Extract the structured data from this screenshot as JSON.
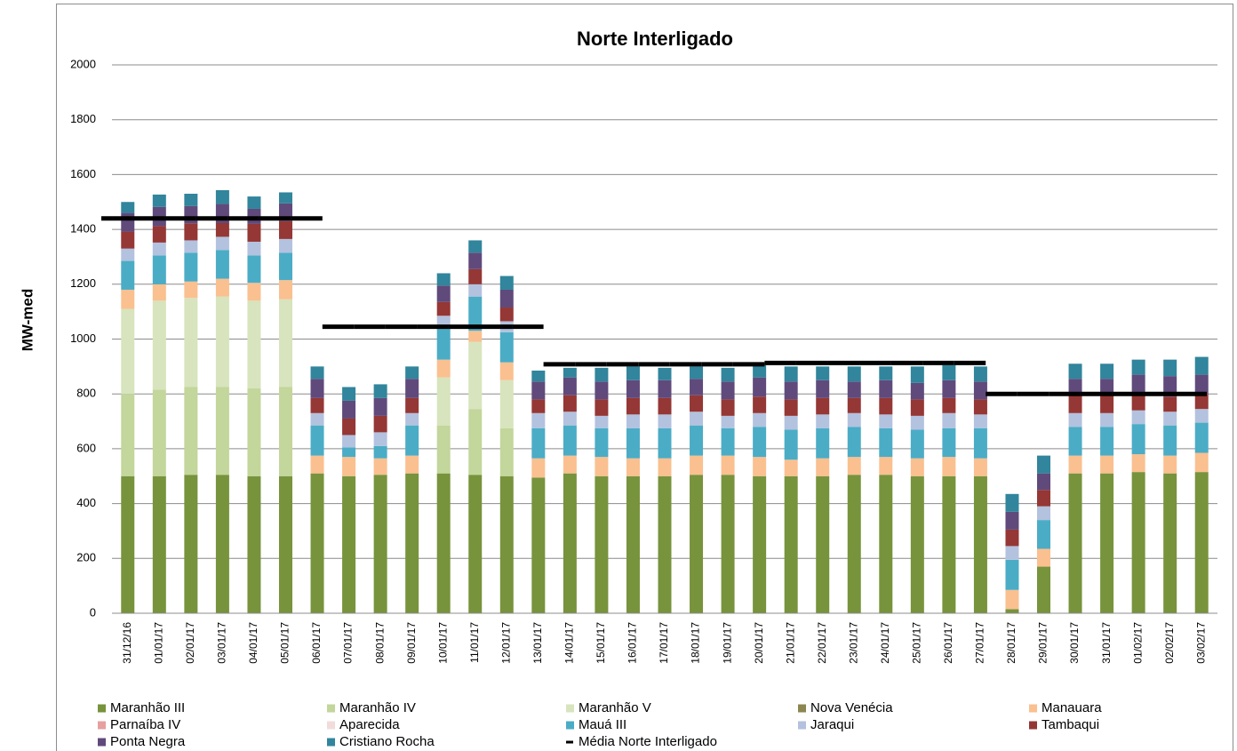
{
  "chart_data": {
    "type": "bar",
    "stacked": true,
    "title": "Norte Interligado",
    "y_label": "MW-med",
    "categories": [
      "31/12/16",
      "01/01/17",
      "02/01/17",
      "03/01/17",
      "04/01/17",
      "05/01/17",
      "06/01/17",
      "07/01/17",
      "08/01/17",
      "09/01/17",
      "10/01/17",
      "11/01/17",
      "12/01/17",
      "13/01/17",
      "14/01/17",
      "15/01/17",
      "16/01/17",
      "17/01/17",
      "18/01/17",
      "19/01/17",
      "20/01/17",
      "21/01/17",
      "22/01/17",
      "23/01/17",
      "24/01/17",
      "25/01/17",
      "26/01/17",
      "27/01/17",
      "28/01/17",
      "29/01/17",
      "30/01/17",
      "31/01/17",
      "01/02/17",
      "02/02/17",
      "03/02/17"
    ],
    "ylim": [
      0,
      2000
    ],
    "yticks": [
      0,
      200,
      400,
      600,
      800,
      1000,
      1200,
      1400,
      1600,
      1800,
      2000
    ],
    "grid": true,
    "legend": "bottom",
    "series": [
      {
        "name": "Maranhão III",
        "color": "#77933c",
        "values": [
          500,
          500,
          505,
          505,
          500,
          500,
          510,
          500,
          505,
          510,
          510,
          505,
          500,
          495,
          510,
          500,
          500,
          500,
          505,
          505,
          500,
          500,
          500,
          505,
          505,
          500,
          500,
          500,
          15,
          170,
          510,
          510,
          515,
          510,
          515
        ]
      },
      {
        "name": "Maranhão IV",
        "color": "#c3d69b",
        "values": [
          300,
          315,
          320,
          320,
          320,
          325,
          0,
          0,
          0,
          0,
          175,
          240,
          175,
          0,
          0,
          0,
          0,
          0,
          0,
          0,
          0,
          0,
          0,
          0,
          0,
          0,
          0,
          0,
          0,
          0,
          0,
          0,
          0,
          0,
          0
        ]
      },
      {
        "name": "Maranhão V",
        "color": "#d7e4bd",
        "values": [
          310,
          325,
          325,
          330,
          320,
          320,
          0,
          0,
          0,
          0,
          175,
          245,
          175,
          0,
          0,
          0,
          0,
          0,
          0,
          0,
          0,
          0,
          0,
          0,
          0,
          0,
          0,
          0,
          0,
          0,
          0,
          0,
          0,
          0,
          0
        ]
      },
      {
        "name": "Nova Venécia",
        "color": "#8c8650",
        "values": [
          0,
          0,
          0,
          0,
          0,
          0,
          0,
          0,
          0,
          0,
          0,
          0,
          0,
          0,
          0,
          0,
          0,
          0,
          0,
          0,
          0,
          0,
          0,
          0,
          0,
          0,
          0,
          0,
          0,
          0,
          0,
          0,
          0,
          0,
          0
        ]
      },
      {
        "name": "Manauara",
        "color": "#fac090",
        "values": [
          70,
          60,
          60,
          65,
          65,
          70,
          65,
          70,
          60,
          65,
          65,
          40,
          65,
          70,
          65,
          70,
          65,
          65,
          70,
          70,
          70,
          60,
          65,
          65,
          65,
          65,
          70,
          65,
          70,
          65,
          65,
          65,
          65,
          65,
          70
        ]
      },
      {
        "name": "Parnaíba IV",
        "color": "#e6a0a0",
        "values": [
          0,
          0,
          0,
          0,
          0,
          0,
          0,
          0,
          0,
          0,
          0,
          0,
          0,
          0,
          0,
          0,
          0,
          0,
          0,
          0,
          0,
          0,
          0,
          0,
          0,
          0,
          0,
          0,
          0,
          0,
          0,
          0,
          0,
          0,
          0
        ]
      },
      {
        "name": "Aparecida",
        "color": "#f2dcdb",
        "values": [
          0,
          0,
          0,
          0,
          0,
          0,
          0,
          0,
          0,
          0,
          0,
          0,
          0,
          0,
          0,
          0,
          0,
          0,
          0,
          0,
          0,
          0,
          0,
          0,
          0,
          0,
          0,
          0,
          0,
          0,
          0,
          0,
          0,
          0,
          0
        ]
      },
      {
        "name": "Mauá III",
        "color": "#4bacc6",
        "values": [
          105,
          105,
          105,
          105,
          100,
          100,
          110,
          35,
          45,
          110,
          120,
          125,
          110,
          110,
          110,
          105,
          110,
          110,
          110,
          100,
          110,
          110,
          110,
          110,
          105,
          105,
          105,
          110,
          110,
          105,
          105,
          105,
          110,
          110,
          110
        ]
      },
      {
        "name": "Jaraqui",
        "color": "#b3c2de",
        "values": [
          45,
          47,
          45,
          48,
          50,
          50,
          45,
          45,
          50,
          45,
          40,
          45,
          40,
          55,
          50,
          45,
          50,
          50,
          50,
          45,
          50,
          50,
          50,
          50,
          50,
          50,
          55,
          50,
          50,
          50,
          50,
          50,
          50,
          50,
          50
        ]
      },
      {
        "name": "Tambaqui",
        "color": "#953735",
        "values": [
          62,
          60,
          62,
          50,
          65,
          65,
          55,
          60,
          60,
          55,
          50,
          55,
          50,
          50,
          60,
          60,
          60,
          60,
          60,
          60,
          60,
          60,
          60,
          55,
          60,
          60,
          55,
          55,
          60,
          60,
          65,
          65,
          60,
          55,
          55
        ]
      },
      {
        "name": "Ponta Negra",
        "color": "#604a7b",
        "values": [
          68,
          70,
          63,
          70,
          55,
          65,
          70,
          65,
          65,
          70,
          60,
          60,
          65,
          65,
          65,
          65,
          65,
          65,
          60,
          65,
          70,
          65,
          65,
          60,
          65,
          60,
          65,
          65,
          65,
          60,
          60,
          60,
          70,
          75,
          70
        ]
      },
      {
        "name": "Cristiano Rocha",
        "color": "#31859c",
        "values": [
          40,
          45,
          45,
          50,
          45,
          40,
          45,
          50,
          50,
          45,
          45,
          45,
          50,
          40,
          35,
          50,
          50,
          45,
          45,
          50,
          45,
          55,
          50,
          55,
          50,
          60,
          55,
          55,
          65,
          65,
          55,
          55,
          55,
          60,
          65
        ]
      },
      {
        "name": "Média Norte Interligado",
        "color": "#000000",
        "type": "line",
        "values": [
          1440,
          1440,
          1440,
          1440,
          1440,
          1440,
          1440,
          1045,
          1045,
          1045,
          1045,
          1045,
          1045,
          1045,
          908,
          908,
          908,
          908,
          908,
          908,
          908,
          913,
          913,
          913,
          913,
          913,
          913,
          913,
          800,
          800,
          800,
          800,
          800,
          800,
          800
        ]
      }
    ]
  }
}
